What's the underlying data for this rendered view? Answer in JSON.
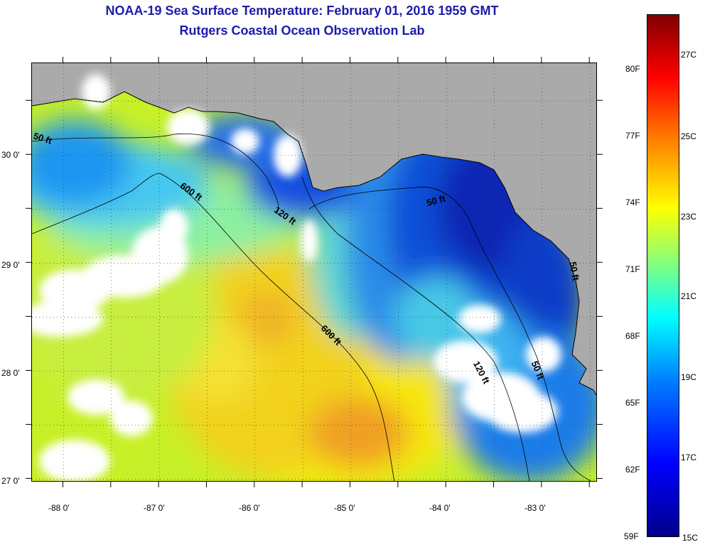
{
  "header": {
    "title": "NOAA-19 Sea Surface Temperature:  February 01, 2016 1959 GMT",
    "subtitle": "Rutgers Coastal Ocean Observation Lab"
  },
  "axes": {
    "latitude_labels": [
      "30 0'",
      "29 0'",
      "28 0'",
      "27 0'"
    ],
    "latitude_values": [
      30,
      29,
      28,
      27
    ],
    "longitude_labels": [
      "-88 0'",
      "-87 0'",
      "-86 0'",
      "-85 0'",
      "-84 0'",
      "-83 0'"
    ],
    "longitude_values": [
      -88,
      -87,
      -86,
      -85,
      -84,
      -83
    ],
    "lon_range": [
      -88.33,
      -82.42
    ],
    "lat_range": [
      26.97,
      30.85
    ]
  },
  "colorbar": {
    "fahrenheit_labels": [
      "80F",
      "77F",
      "74F",
      "71F",
      "68F",
      "65F",
      "62F",
      "59F"
    ],
    "fahrenheit_values": [
      80,
      77,
      74,
      71,
      68,
      65,
      62,
      59
    ],
    "celsius_labels": [
      "27C",
      "25C",
      "23C",
      "21C",
      "19C",
      "17C",
      "15C"
    ],
    "celsius_values": [
      27,
      25,
      23,
      21,
      19,
      17,
      15
    ],
    "range_c": [
      15,
      28.3
    ],
    "colors": [
      "#00008b",
      "#0000ff",
      "#0080ff",
      "#00ffff",
      "#80ff80",
      "#ffff00",
      "#ff8000",
      "#ff0000",
      "#800000"
    ]
  },
  "map_colors": {
    "land": "#aaaaaa",
    "cloud": "#ffffff",
    "coastline": "#000000",
    "bathymetry_line": "#000000"
  },
  "contour_labels": [
    {
      "text": "50 ft"
    },
    {
      "text": "600 ft"
    },
    {
      "text": "120 ft"
    },
    {
      "text": "50 ft"
    },
    {
      "text": "600 ft"
    },
    {
      "text": "120 ft"
    },
    {
      "text": "50 ft"
    },
    {
      "text": "50 ft"
    }
  ]
}
